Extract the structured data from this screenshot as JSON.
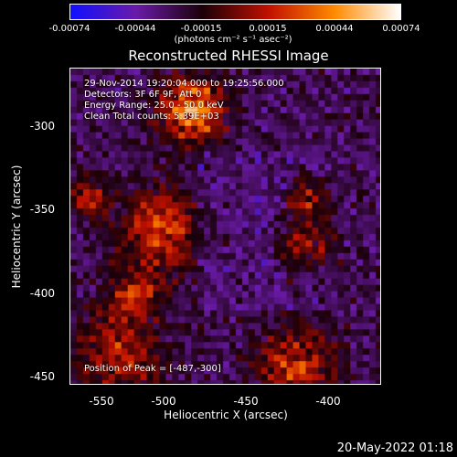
{
  "colorbar": {
    "ticks": [
      "-0.00074",
      "-0.00044",
      "-0.00015",
      "0.00015",
      "0.00044",
      "0.00074"
    ],
    "units_label": "(photons cm⁻² s⁻¹ asec⁻²)",
    "colors": [
      "#1010ff",
      "#6a1aa8",
      "#1a0008",
      "#c01000",
      "#ff8a00",
      "#ffffff"
    ]
  },
  "title": "Reconstructed RHESSI Image",
  "info": {
    "line1": "29-Nov-2014 19:20:04.000 to 19:25:56.000",
    "line2": "Detectors: 3F 6F 9F, Att 0",
    "line3": "Energy Range: 25.0 - 50.0 keV",
    "line4": "Clean    Total counts: 5.39E+03"
  },
  "peak_label": "Position of Peak = [-487,-300]",
  "x_axis": {
    "label": "Heliocentric X (arcsec)",
    "ticks": [
      "-550",
      "-500",
      "-450",
      "-400"
    ],
    "range": [
      -560,
      -410
    ]
  },
  "y_axis": {
    "label": "Heliocentric Y (arcsec)",
    "ticks": [
      "-300",
      "-350",
      "-400",
      "-450"
    ],
    "range": [
      -455,
      -270
    ]
  },
  "timestamp": "20-May-2022 01:18"
}
